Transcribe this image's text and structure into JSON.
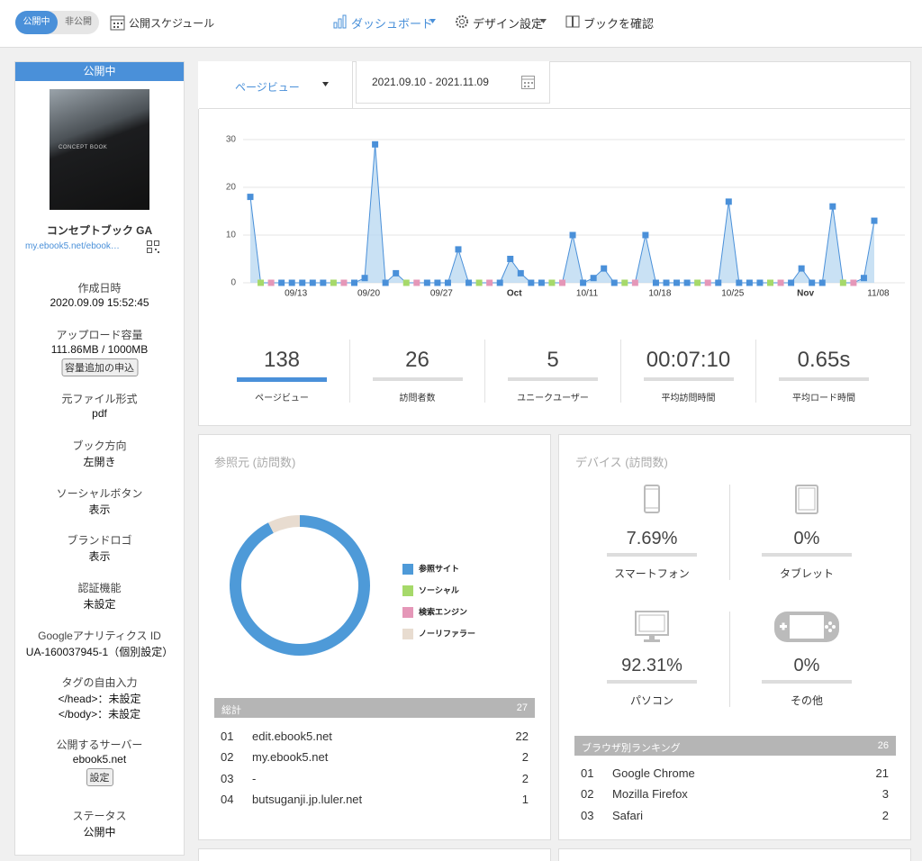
{
  "header": {
    "toggle": [
      "公開中",
      "非公開"
    ],
    "schedule": "公開スケジュール",
    "nav": [
      "ダッシュボード",
      "デザイン設定",
      "ブックを確認"
    ]
  },
  "sidebar": {
    "status_header": "公開中",
    "cover_text": "CONCEPT BOOK",
    "book_title": "コンセプトブック GA",
    "book_url": "my.ebook5.net/ebook…",
    "fields": [
      {
        "label": "作成日時",
        "lines": [
          "2020.09.09 15:52:45"
        ]
      },
      {
        "label": "アップロード容量",
        "lines": [
          "111.86MB / 1000MB"
        ],
        "button": "容量追加の申込"
      },
      {
        "label": "元ファイル形式",
        "lines": [
          "pdf"
        ]
      },
      {
        "label": "ブック方向",
        "lines": [
          "左開き"
        ]
      },
      {
        "label": "ソーシャルボタン",
        "lines": [
          "表示"
        ]
      },
      {
        "label": "ブランドロゴ",
        "lines": [
          "表示"
        ]
      },
      {
        "label": "認証機能",
        "lines": [
          "未設定"
        ]
      },
      {
        "label": "Googleアナリティクス ID",
        "lines": [
          "UA-160037945-1（個別設定）"
        ]
      },
      {
        "label": "タグの自由入力",
        "lines": [
          "</head>：未設定",
          "</body>：未設定"
        ]
      },
      {
        "label": "公開するサーバー",
        "lines": [
          "ebook5.net"
        ],
        "button": "設定"
      },
      {
        "label": "ステータス",
        "lines": [
          "公開中"
        ]
      }
    ]
  },
  "dashboard": {
    "tab": "ページビュー",
    "date_range": "2021.09.10 - 2021.11.09",
    "stats": [
      {
        "value": "138",
        "label": "ページビュー"
      },
      {
        "value": "26",
        "label": "訪問者数"
      },
      {
        "value": "5",
        "label": "ユニークユーザー"
      },
      {
        "value": "00:07:10",
        "label": "平均訪問時間"
      },
      {
        "value": "0.65s",
        "label": "平均ロード時間"
      }
    ]
  },
  "chart_data": [
    {
      "type": "area",
      "color": "#4a90d9",
      "fill": "#bcd9f1",
      "grid": true,
      "ylim": [
        0,
        30
      ],
      "yticks": [
        0,
        10,
        20,
        30
      ],
      "categories": [
        null,
        null,
        null,
        "09/13",
        null,
        null,
        null,
        null,
        null,
        null,
        "09/20",
        null,
        null,
        null,
        null,
        null,
        null,
        "09/27",
        null,
        null,
        null,
        null,
        null,
        null,
        "Oct",
        null,
        null,
        null,
        null,
        null,
        null,
        "10/11",
        null,
        null,
        null,
        null,
        null,
        null,
        "10/18",
        null,
        null,
        null,
        null,
        null,
        null,
        "10/25",
        null,
        null,
        null,
        null,
        null,
        null,
        "Nov",
        null,
        null,
        null,
        null,
        null,
        null,
        "11/08",
        null
      ],
      "values": [
        18,
        0,
        0,
        0,
        0,
        0,
        0,
        0,
        0,
        0,
        0,
        1,
        29,
        0,
        2,
        0,
        0,
        0,
        0,
        0,
        7,
        0,
        0,
        0,
        0,
        5,
        2,
        0,
        0,
        0,
        0,
        10,
        0,
        1,
        3,
        0,
        0,
        0,
        10,
        0,
        0,
        0,
        0,
        0,
        0,
        0,
        17,
        0,
        0,
        0,
        0,
        0,
        0,
        3,
        0,
        0,
        16,
        0,
        0,
        1,
        13
      ],
      "point_colors": {
        "weekday": "#4a90d9",
        "saturday": "#a6d96a",
        "sunday": "#e597b8"
      }
    },
    {
      "type": "pie",
      "title": "参照元 (訪問数)",
      "categories": [
        "参照サイト",
        "ソーシャル",
        "検索エンジン",
        "ノーリファラー"
      ],
      "values": [
        25,
        0,
        0,
        2
      ],
      "colors": [
        "#4e9ad8",
        "#a6d96a",
        "#e597b8",
        "#e8dcd0"
      ]
    }
  ],
  "referrers": {
    "total_label": "総計",
    "total": 27,
    "rows": [
      [
        "01",
        "edit.ebook5.net",
        22
      ],
      [
        "02",
        "my.ebook5.net",
        2
      ],
      [
        "03",
        "-",
        2
      ],
      [
        "04",
        "butsuganji.jp.luler.net",
        1
      ]
    ]
  },
  "devices": {
    "title": "デバイス (訪問数)",
    "items": [
      {
        "value": "7.69%",
        "label": "スマートフォン"
      },
      {
        "value": "0%",
        "label": "タブレット"
      },
      {
        "value": "92.31%",
        "label": "パソコン"
      },
      {
        "value": "0%",
        "label": "その他"
      }
    ]
  },
  "browsers": {
    "title": "ブラウザ別ランキング",
    "total": 26,
    "rows": [
      [
        "01",
        "Google Chrome",
        21
      ],
      [
        "02",
        "Mozilla Firefox",
        3
      ],
      [
        "03",
        "Safari",
        2
      ]
    ]
  }
}
